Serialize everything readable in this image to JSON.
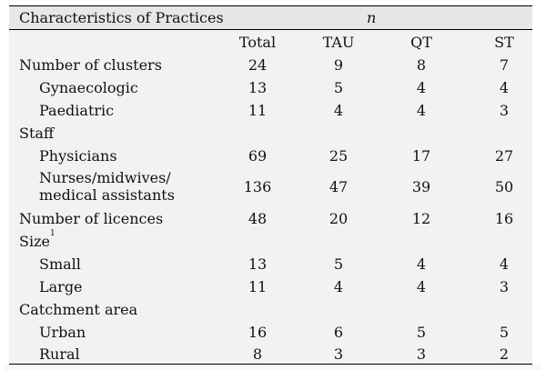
{
  "table": {
    "title": "Characteristics of Practices",
    "n_label": "n",
    "columns": [
      "Total",
      "TAU",
      "QT",
      "ST"
    ],
    "rows": [
      {
        "label": "Number of clusters",
        "values": [
          "24",
          "9",
          "8",
          "7"
        ]
      },
      {
        "label": "Gynaecologic",
        "values": [
          "13",
          "5",
          "4",
          "4"
        ]
      },
      {
        "label": "Paediatric",
        "values": [
          "11",
          "4",
          "4",
          "3"
        ]
      },
      {
        "label": "Staff",
        "values": []
      },
      {
        "label": "Physicians",
        "values": [
          "69",
          "25",
          "17",
          "27"
        ]
      },
      {
        "label_line1": "Nurses/midwives/",
        "label_line2": "medical assistants",
        "values": [
          "136",
          "47",
          "39",
          "50"
        ]
      },
      {
        "label": "Number of licences",
        "values": [
          "48",
          "20",
          "12",
          "16"
        ]
      },
      {
        "label": "Size",
        "footnote": "1",
        "values": []
      },
      {
        "label": "Small",
        "values": [
          "13",
          "5",
          "4",
          "4"
        ]
      },
      {
        "label": "Large",
        "values": [
          "11",
          "4",
          "4",
          "3"
        ]
      },
      {
        "label": "Catchment area",
        "values": []
      },
      {
        "label": "Urban",
        "values": [
          "16",
          "6",
          "5",
          "5"
        ]
      },
      {
        "label": "Rural",
        "values": [
          "8",
          "3",
          "3",
          "2"
        ]
      }
    ]
  }
}
